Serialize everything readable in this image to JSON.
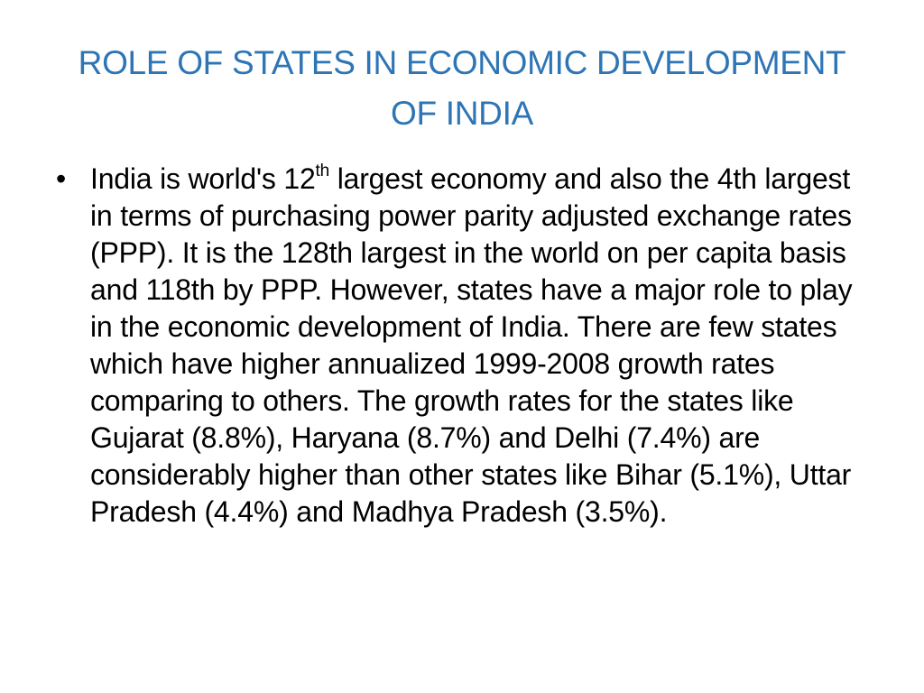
{
  "slide": {
    "title_line1": "ROLE OF STATES IN ECONOMIC DEVELOPMENT",
    "title_line2": "OF INDIA",
    "title_color": "#2e75b6",
    "bullet_char": "•",
    "paragraph": {
      "part1": "India is world's 12",
      "superscript": "th",
      "part2": " largest economy and also the 4th largest in terms of purchasing power parity adjusted exchange rates (PPP). It is the 128th largest in the world on per capita basis and 118th by PPP. However, states have a major role to play in the economic development of India. There are few states which have higher annualized 1999-2008 growth rates comparing to others. The growth rates for the states like Gujarat (8.8%), Haryana (8.7%) and Delhi (7.4%) are considerably higher than other states like Bihar (5.1%), Uttar Pradesh (4.4%) and Madhya Pradesh (3.5%)."
    }
  }
}
